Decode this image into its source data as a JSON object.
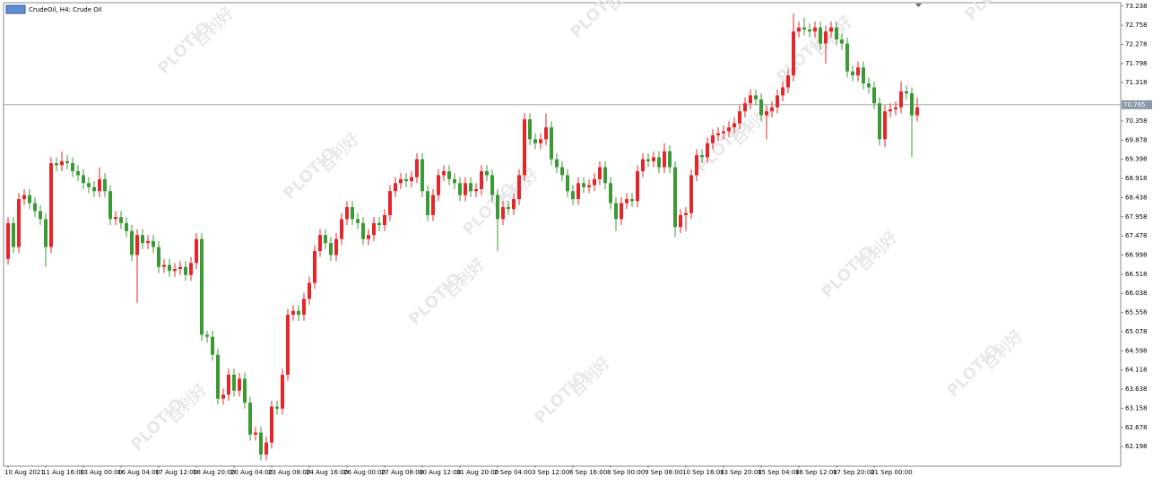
{
  "chart_data": {
    "type": "candlestick",
    "title": "CrudeOil, H4:  Crude Oil",
    "up_color": "#e5262b",
    "down_color": "#3c9a35",
    "watermark": "PLOTIO",
    "watermark_cn": "百利好",
    "current_price": 70.765,
    "ylim": [
      61.73,
      73.3
    ],
    "yticks": [
      73.238,
      72.758,
      72.278,
      71.798,
      71.318,
      70.358,
      69.878,
      69.398,
      68.918,
      68.438,
      67.958,
      67.478,
      66.998,
      66.518,
      66.038,
      65.558,
      65.078,
      64.598,
      64.118,
      63.638,
      63.158,
      62.678,
      62.198
    ],
    "categories": [
      "10 Aug 2021",
      null,
      null,
      null,
      null,
      null,
      null,
      "11 Aug 16:00",
      null,
      null,
      null,
      null,
      null,
      null,
      "13 Aug 00:00",
      null,
      null,
      null,
      null,
      null,
      null,
      "16 Aug 04:00",
      null,
      null,
      null,
      null,
      null,
      null,
      "17 Aug 12:00",
      null,
      null,
      null,
      null,
      null,
      null,
      "18 Aug 20:00",
      null,
      null,
      null,
      null,
      null,
      null,
      "20 Aug 04:00",
      null,
      null,
      null,
      null,
      null,
      null,
      "23 Aug 08:00",
      null,
      null,
      null,
      null,
      null,
      null,
      "24 Aug 16:00",
      null,
      null,
      null,
      null,
      null,
      null,
      "26 Aug 00:00",
      null,
      null,
      null,
      null,
      null,
      null,
      "27 Aug 08:00",
      null,
      null,
      null,
      null,
      null,
      null,
      "30 Aug 12:00",
      null,
      null,
      null,
      null,
      null,
      null,
      "31 Aug 20:00",
      null,
      null,
      null,
      null,
      null,
      null,
      "2 Sep 04:00",
      null,
      null,
      null,
      null,
      null,
      null,
      "3 Sep 12:00",
      null,
      null,
      null,
      null,
      null,
      null,
      "6 Sep 16:00",
      null,
      null,
      null,
      null,
      null,
      null,
      "8 Sep 00:00",
      null,
      null,
      null,
      null,
      null,
      null,
      "9 Sep 08:00",
      null,
      null,
      null,
      null,
      null,
      null,
      "10 Sep 16:00",
      null,
      null,
      null,
      null,
      null,
      null,
      "13 Sep 20:00",
      null,
      null,
      null,
      null,
      null,
      null,
      "15 Sep 04:00",
      null,
      null,
      null,
      null,
      null,
      null,
      "16 Sep 12:00",
      null,
      null,
      null,
      null,
      null,
      null,
      "17 Sep 20:00",
      null,
      null,
      null,
      null,
      null,
      null,
      "21 Sep 00:00",
      null,
      null,
      null,
      null,
      null,
      null,
      null,
      null
    ],
    "ohlc": [
      [
        66.9,
        67.95,
        66.75,
        67.8
      ],
      [
        67.8,
        67.95,
        67.05,
        67.2
      ],
      [
        67.2,
        68.55,
        67.05,
        68.4
      ],
      [
        68.4,
        68.65,
        68.25,
        68.5
      ],
      [
        68.5,
        68.65,
        68.15,
        68.3
      ],
      [
        68.3,
        68.45,
        67.95,
        68.1
      ],
      [
        68.1,
        68.25,
        67.75,
        67.9
      ],
      [
        67.9,
        68.05,
        66.7,
        67.2
      ],
      [
        67.2,
        69.45,
        67.05,
        69.3
      ],
      [
        69.3,
        69.45,
        69.1,
        69.25
      ],
      [
        69.25,
        69.6,
        69.1,
        69.35
      ],
      [
        69.35,
        69.5,
        69.15,
        69.3
      ],
      [
        69.3,
        69.45,
        68.95,
        69.1
      ],
      [
        69.1,
        69.25,
        68.85,
        69.0
      ],
      [
        69.0,
        69.15,
        68.65,
        68.8
      ],
      [
        68.8,
        68.95,
        68.55,
        68.7
      ],
      [
        68.7,
        68.85,
        68.45,
        68.6
      ],
      [
        68.6,
        69.2,
        68.45,
        68.9
      ],
      [
        68.9,
        69.05,
        68.45,
        68.6
      ],
      [
        68.6,
        68.75,
        67.75,
        67.9
      ],
      [
        67.9,
        68.1,
        67.75,
        67.95
      ],
      [
        67.95,
        68.1,
        67.65,
        67.8
      ],
      [
        67.8,
        67.95,
        67.45,
        67.6
      ],
      [
        67.6,
        67.75,
        66.85,
        67.0
      ],
      [
        67.0,
        67.65,
        65.8,
        67.5
      ],
      [
        67.5,
        67.65,
        67.15,
        67.3
      ],
      [
        67.3,
        67.5,
        67.15,
        67.35
      ],
      [
        67.35,
        67.5,
        67.05,
        67.2
      ],
      [
        67.2,
        67.35,
        66.55,
        66.7
      ],
      [
        66.7,
        66.9,
        66.55,
        66.75
      ],
      [
        66.75,
        66.9,
        66.45,
        66.6
      ],
      [
        66.6,
        66.8,
        66.45,
        66.65
      ],
      [
        66.65,
        66.85,
        66.5,
        66.7
      ],
      [
        66.7,
        66.85,
        66.35,
        66.5
      ],
      [
        66.5,
        66.95,
        66.35,
        66.8
      ],
      [
        66.8,
        67.55,
        66.65,
        67.4
      ],
      [
        67.4,
        67.55,
        64.85,
        65.0
      ],
      [
        65.0,
        65.1,
        64.8,
        64.95
      ],
      [
        64.95,
        65.1,
        64.35,
        64.5
      ],
      [
        64.5,
        64.65,
        63.25,
        63.4
      ],
      [
        63.4,
        63.65,
        63.25,
        63.5
      ],
      [
        63.5,
        64.15,
        63.35,
        64.0
      ],
      [
        64.0,
        64.15,
        63.45,
        63.6
      ],
      [
        63.6,
        64.05,
        63.45,
        63.9
      ],
      [
        63.9,
        64.05,
        63.15,
        63.3
      ],
      [
        63.3,
        63.45,
        62.35,
        62.5
      ],
      [
        62.5,
        62.7,
        62.35,
        62.55
      ],
      [
        62.55,
        62.7,
        61.85,
        62.0
      ],
      [
        62.0,
        62.45,
        61.85,
        62.3
      ],
      [
        62.3,
        63.35,
        62.15,
        63.2
      ],
      [
        63.2,
        63.35,
        63.0,
        63.15
      ],
      [
        63.15,
        64.15,
        63.0,
        64.0
      ],
      [
        64.0,
        65.65,
        63.85,
        65.5
      ],
      [
        65.5,
        65.75,
        65.35,
        65.6
      ],
      [
        65.6,
        65.75,
        65.35,
        65.5
      ],
      [
        65.5,
        66.05,
        65.35,
        65.9
      ],
      [
        65.9,
        66.45,
        65.75,
        66.3
      ],
      [
        66.3,
        67.25,
        66.15,
        67.1
      ],
      [
        67.1,
        67.65,
        66.95,
        67.5
      ],
      [
        67.5,
        67.65,
        67.15,
        67.3
      ],
      [
        67.3,
        67.45,
        66.85,
        67.0
      ],
      [
        67.0,
        67.55,
        66.85,
        67.4
      ],
      [
        67.4,
        68.05,
        67.25,
        67.9
      ],
      [
        67.9,
        68.35,
        67.75,
        68.2
      ],
      [
        68.2,
        68.35,
        67.75,
        67.9
      ],
      [
        67.9,
        68.05,
        67.65,
        67.8
      ],
      [
        67.8,
        67.95,
        67.25,
        67.4
      ],
      [
        67.4,
        67.65,
        67.25,
        67.5
      ],
      [
        67.5,
        67.95,
        67.35,
        67.8
      ],
      [
        67.8,
        67.95,
        67.6,
        67.75
      ],
      [
        67.75,
        68.15,
        67.6,
        68.0
      ],
      [
        68.0,
        68.75,
        67.85,
        68.6
      ],
      [
        68.6,
        68.95,
        68.45,
        68.8
      ],
      [
        68.8,
        69.05,
        68.65,
        68.9
      ],
      [
        68.9,
        69.05,
        68.7,
        68.85
      ],
      [
        68.85,
        69.1,
        68.7,
        68.95
      ],
      [
        68.95,
        69.55,
        68.8,
        69.4
      ],
      [
        69.4,
        69.55,
        68.45,
        68.6
      ],
      [
        68.6,
        68.75,
        67.85,
        68.0
      ],
      [
        68.0,
        68.65,
        67.85,
        68.5
      ],
      [
        68.5,
        69.15,
        68.35,
        69.0
      ],
      [
        69.0,
        69.25,
        68.85,
        69.1
      ],
      [
        69.1,
        69.25,
        68.75,
        68.9
      ],
      [
        68.9,
        69.05,
        68.65,
        68.8
      ],
      [
        68.8,
        68.95,
        68.35,
        68.5
      ],
      [
        68.5,
        68.95,
        68.35,
        68.8
      ],
      [
        68.8,
        68.95,
        68.45,
        68.6
      ],
      [
        68.6,
        68.8,
        68.45,
        68.65
      ],
      [
        68.65,
        69.25,
        68.5,
        69.1
      ],
      [
        69.1,
        69.25,
        68.85,
        69.0
      ],
      [
        69.0,
        69.15,
        68.35,
        68.5
      ],
      [
        68.5,
        68.65,
        67.1,
        67.9
      ],
      [
        67.9,
        68.35,
        67.75,
        68.2
      ],
      [
        68.2,
        68.35,
        68.0,
        68.15
      ],
      [
        68.15,
        68.55,
        68.0,
        68.4
      ],
      [
        68.4,
        69.15,
        68.25,
        69.0
      ],
      [
        69.0,
        70.55,
        68.85,
        70.4
      ],
      [
        70.4,
        70.55,
        69.75,
        69.9
      ],
      [
        69.9,
        70.05,
        69.65,
        69.8
      ],
      [
        69.8,
        70.05,
        69.65,
        69.9
      ],
      [
        69.9,
        70.55,
        69.75,
        70.2
      ],
      [
        70.2,
        70.35,
        69.25,
        69.4
      ],
      [
        69.4,
        69.55,
        69.05,
        69.2
      ],
      [
        69.2,
        69.35,
        68.85,
        69.0
      ],
      [
        69.0,
        69.15,
        68.45,
        68.6
      ],
      [
        68.6,
        68.75,
        68.25,
        68.4
      ],
      [
        68.4,
        68.95,
        68.25,
        68.8
      ],
      [
        68.8,
        68.95,
        68.55,
        68.7
      ],
      [
        68.7,
        68.9,
        68.55,
        68.75
      ],
      [
        68.75,
        69.05,
        68.6,
        68.9
      ],
      [
        68.9,
        69.35,
        68.75,
        69.2
      ],
      [
        69.2,
        69.35,
        68.65,
        68.8
      ],
      [
        68.8,
        68.95,
        68.15,
        68.3
      ],
      [
        68.3,
        68.45,
        67.6,
        67.9
      ],
      [
        67.9,
        68.45,
        67.75,
        68.3
      ],
      [
        68.3,
        68.55,
        68.15,
        68.4
      ],
      [
        68.4,
        68.55,
        68.2,
        68.35
      ],
      [
        68.35,
        69.25,
        68.2,
        69.1
      ],
      [
        69.1,
        69.55,
        68.95,
        69.4
      ],
      [
        69.4,
        69.55,
        69.2,
        69.35
      ],
      [
        69.35,
        69.6,
        69.2,
        69.45
      ],
      [
        69.45,
        69.6,
        69.05,
        69.2
      ],
      [
        69.2,
        69.8,
        69.05,
        69.6
      ],
      [
        69.6,
        69.75,
        69.05,
        69.2
      ],
      [
        69.2,
        69.35,
        67.45,
        67.7
      ],
      [
        67.7,
        68.15,
        67.55,
        68.0
      ],
      [
        68.0,
        68.2,
        67.6,
        68.05
      ],
      [
        68.05,
        69.15,
        67.9,
        69.0
      ],
      [
        69.0,
        69.65,
        68.85,
        69.5
      ],
      [
        69.5,
        69.65,
        69.3,
        69.45
      ],
      [
        69.45,
        69.95,
        69.3,
        69.8
      ],
      [
        69.8,
        70.15,
        69.65,
        70.0
      ],
      [
        70.0,
        70.2,
        69.85,
        70.05
      ],
      [
        70.05,
        70.25,
        69.9,
        70.1
      ],
      [
        70.1,
        70.35,
        69.95,
        70.2
      ],
      [
        70.2,
        70.45,
        70.05,
        70.3
      ],
      [
        70.3,
        70.75,
        70.15,
        70.6
      ],
      [
        70.6,
        70.95,
        70.45,
        70.8
      ],
      [
        70.8,
        71.15,
        70.65,
        71.0
      ],
      [
        71.0,
        71.15,
        70.75,
        70.9
      ],
      [
        70.9,
        71.05,
        70.35,
        70.5
      ],
      [
        70.5,
        70.75,
        69.9,
        70.6
      ],
      [
        70.6,
        70.85,
        70.45,
        70.7
      ],
      [
        70.7,
        71.15,
        70.55,
        71.0
      ],
      [
        71.0,
        71.35,
        70.85,
        71.2
      ],
      [
        71.2,
        71.65,
        71.05,
        71.5
      ],
      [
        71.5,
        73.05,
        71.35,
        72.6
      ],
      [
        72.6,
        72.85,
        72.45,
        72.7
      ],
      [
        72.7,
        72.95,
        72.5,
        72.65
      ],
      [
        72.65,
        72.8,
        72.45,
        72.6
      ],
      [
        72.6,
        72.85,
        72.45,
        72.7
      ],
      [
        72.7,
        72.85,
        72.15,
        72.3
      ],
      [
        72.3,
        72.75,
        71.8,
        72.6
      ],
      [
        72.6,
        72.85,
        72.45,
        72.7
      ],
      [
        72.7,
        72.85,
        72.25,
        72.4
      ],
      [
        72.4,
        72.55,
        72.15,
        72.3
      ],
      [
        72.3,
        72.45,
        71.45,
        71.6
      ],
      [
        71.6,
        71.75,
        71.35,
        71.5
      ],
      [
        71.5,
        71.85,
        71.35,
        71.7
      ],
      [
        71.7,
        71.85,
        71.15,
        71.3
      ],
      [
        71.3,
        71.45,
        71.05,
        71.2
      ],
      [
        71.2,
        71.35,
        70.65,
        70.8
      ],
      [
        70.8,
        70.95,
        69.75,
        69.9
      ],
      [
        69.9,
        70.75,
        69.7,
        70.6
      ],
      [
        70.6,
        70.8,
        70.45,
        70.65
      ],
      [
        70.65,
        70.85,
        70.5,
        70.7
      ],
      [
        70.7,
        71.35,
        70.55,
        71.1
      ],
      [
        71.1,
        71.25,
        70.9,
        71.05
      ],
      [
        71.05,
        71.2,
        69.45,
        70.5
      ],
      [
        70.5,
        70.95,
        70.35,
        70.7
      ]
    ]
  }
}
